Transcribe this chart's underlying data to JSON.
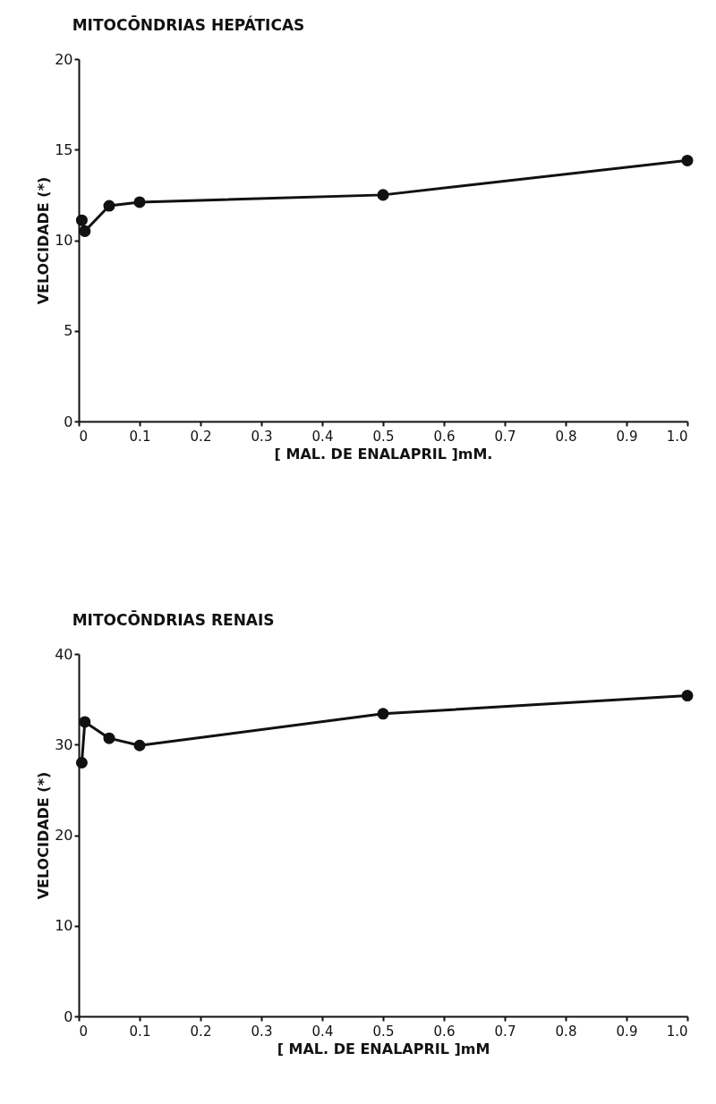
{
  "chart_data": [
    {
      "type": "line",
      "title": "MITOCŌNDRIAS   HEPÁTICAS",
      "xlabel": "[ MAL. DE ENALAPRIL ]mM.",
      "ylabel": "VELOCIDADE (*)",
      "x": [
        0.005,
        0.01,
        0.05,
        0.1,
        0.5,
        1.0
      ],
      "series": [
        {
          "color": "#111111",
          "values": [
            11.1,
            10.5,
            11.9,
            12.1,
            12.5,
            14.4
          ]
        }
      ],
      "xlim": [
        0,
        1.0
      ],
      "xticks": [
        0,
        0.1,
        0.2,
        0.3,
        0.4,
        0.5,
        0.6,
        0.7,
        0.8,
        0.9,
        {
          "value": 1,
          "label": "1.0"
        }
      ],
      "ylim": [
        0,
        20
      ],
      "yticks": [
        0,
        5,
        10,
        15,
        20
      ],
      "grid": false,
      "legend": false,
      "marker": "circle",
      "line_style": "solid"
    },
    {
      "type": "line",
      "title": "MITOCŌNDRIAS   RENAIS",
      "xlabel": "[ MAL. DE ENALAPRIL ]mM",
      "ylabel": "VELOCIDADE (*)",
      "x": [
        0.005,
        0.01,
        0.05,
        0.1,
        0.5,
        1.0
      ],
      "series": [
        {
          "color": "#111111",
          "values": [
            28.0,
            32.5,
            30.7,
            29.9,
            33.4,
            35.4
          ]
        }
      ],
      "xlim": [
        0,
        1.0
      ],
      "xticks": [
        0,
        0.1,
        0.2,
        0.3,
        0.4,
        0.5,
        0.6,
        0.7,
        0.8,
        0.9,
        {
          "value": 1,
          "label": "1.0"
        }
      ],
      "ylim": [
        0,
        40
      ],
      "yticks": [
        0,
        10,
        20,
        30,
        40
      ],
      "grid": false,
      "legend": false,
      "marker": "circle",
      "line_style": "solid"
    }
  ]
}
